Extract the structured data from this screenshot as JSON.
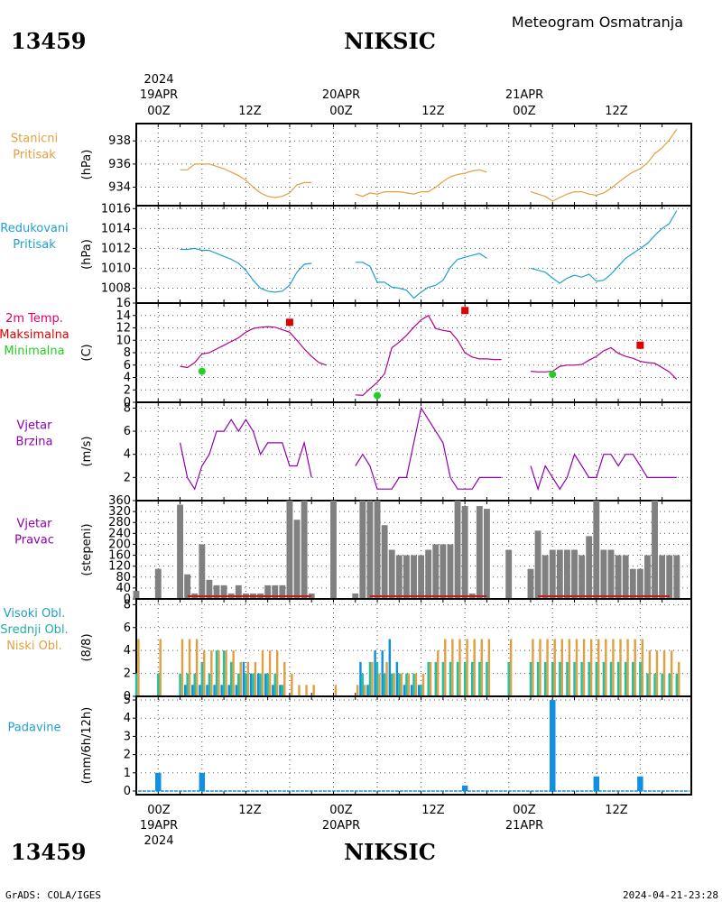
{
  "header": {
    "station_id": "13459",
    "station_name": "NIKSIC",
    "product_title": "Meteogram Osmatranja",
    "footer_left": "GrADS: COLA/IGES",
    "footer_right": "2024-04-21-23:28"
  },
  "time_axis": {
    "top_year": "2024",
    "top_dates": [
      "19APR",
      "20APR",
      "21APR"
    ],
    "hour_labels": [
      "00Z",
      "12Z",
      "00Z",
      "12Z",
      "00Z",
      "12Z"
    ],
    "bottom_dates": [
      "19APR",
      "20APR",
      "21APR"
    ],
    "bottom_year": "2024"
  },
  "colors": {
    "pressure": "#e0a040",
    "reduced": "#20a0d0",
    "temp_line": "#b0008f",
    "tmax": "#e00000",
    "tmin": "#20d020",
    "wind": "#9000b0",
    "dir_bar": "#808080",
    "low_cloud": "#e0a040",
    "mid_cloud": "#20c0a0",
    "high_cloud": "#1090e0",
    "precip": "#1090e0"
  },
  "chart_data": [
    {
      "type": "line",
      "panel": "pressure",
      "title_lines": [
        "Stanicni",
        "Pritisak"
      ],
      "ylabel": "(hPa)",
      "x_unit": "hours since 19APR 00Z",
      "ylim": [
        932.4,
        939.5
      ],
      "yticks": [
        934,
        936,
        938
      ],
      "segments": [
        {
          "x": [
            3,
            4,
            5,
            6,
            7,
            8,
            9,
            10,
            11,
            12,
            13,
            14,
            15,
            16,
            17,
            18,
            19,
            20,
            21
          ],
          "y": [
            935.5,
            935.5,
            936.0,
            936.0,
            936.0,
            935.8,
            935.6,
            935.3,
            935.0,
            934.6,
            934.0,
            933.5,
            933.2,
            933.1,
            933.2,
            933.5,
            934.2,
            934.4,
            934.4
          ]
        },
        {
          "x": [
            27,
            28,
            29,
            30,
            31,
            32,
            33,
            34,
            35,
            36,
            37,
            38,
            39,
            40,
            41,
            42,
            43,
            44,
            45
          ],
          "y": [
            933.4,
            933.2,
            933.5,
            933.4,
            933.6,
            933.6,
            933.6,
            933.5,
            933.4,
            933.6,
            933.6,
            934.0,
            934.5,
            934.9,
            935.1,
            935.2,
            935.4,
            935.5,
            935.3
          ]
        },
        {
          "x": [
            51,
            52,
            53,
            54,
            55,
            56,
            57,
            58,
            59,
            60,
            61,
            62,
            63,
            64,
            65,
            66,
            67,
            68,
            69,
            70,
            71
          ],
          "y": [
            933.6,
            933.4,
            933.2,
            932.8,
            933.1,
            933.4,
            933.6,
            933.6,
            933.4,
            933.3,
            933.5,
            933.9,
            934.4,
            934.9,
            935.3,
            935.6,
            936.1,
            936.9,
            937.4,
            938.1,
            939.0
          ]
        }
      ]
    },
    {
      "type": "line",
      "panel": "reduced_pressure",
      "title_lines": [
        "Redukovani",
        "Pritisak"
      ],
      "ylabel": "(hPa)",
      "x_unit": "hours since 19APR 00Z",
      "ylim": [
        1006.5,
        1016.3
      ],
      "yticks": [
        1008,
        1010,
        1012,
        1014,
        1016
      ],
      "segments": [
        {
          "x": [
            3,
            4,
            5,
            6,
            7,
            8,
            9,
            10,
            11,
            12,
            13,
            14,
            15,
            16,
            17,
            18,
            19,
            20,
            21
          ],
          "y": [
            1011.9,
            1011.9,
            1012.0,
            1011.8,
            1011.8,
            1011.5,
            1011.2,
            1010.9,
            1010.5,
            1009.8,
            1008.8,
            1008.0,
            1007.7,
            1007.6,
            1007.7,
            1008.3,
            1009.6,
            1010.4,
            1010.5
          ]
        },
        {
          "x": [
            27,
            28,
            29,
            30,
            31,
            32,
            33,
            34,
            35,
            36,
            37,
            38,
            39,
            40,
            41,
            42,
            43,
            44,
            45
          ],
          "y": [
            1010.6,
            1010.6,
            1010.2,
            1008.6,
            1008.6,
            1008.1,
            1008.0,
            1007.8,
            1007.0,
            1007.6,
            1008.1,
            1008.3,
            1008.8,
            1010.1,
            1010.9,
            1011.1,
            1011.3,
            1011.5,
            1011.0
          ]
        },
        {
          "x": [
            51,
            52,
            53,
            54,
            55,
            56,
            57,
            58,
            59,
            60,
            61,
            62,
            63,
            64,
            65,
            66,
            67,
            68,
            69,
            70,
            71
          ],
          "y": [
            1010.0,
            1009.8,
            1009.6,
            1009.0,
            1008.5,
            1009.0,
            1009.3,
            1009.1,
            1009.4,
            1008.7,
            1008.8,
            1009.4,
            1010.2,
            1011.0,
            1011.5,
            1012.0,
            1012.5,
            1013.3,
            1014.0,
            1014.5,
            1015.8
          ]
        }
      ]
    },
    {
      "type": "line",
      "panel": "temperature",
      "title_lines": [
        "2m Temp.",
        "Maksimalna",
        "Minimalna"
      ],
      "ylabel": "(C)",
      "x_unit": "hours since 19APR 00Z",
      "ylim": [
        0,
        16
      ],
      "yticks": [
        0,
        2,
        4,
        6,
        8,
        10,
        12,
        14,
        16
      ],
      "segments": [
        {
          "x": [
            3,
            4,
            5,
            6,
            7,
            8,
            9,
            10,
            11,
            12,
            13,
            14,
            15,
            16,
            17,
            18,
            19,
            20,
            21
          ],
          "y": [
            5.8,
            5.6,
            6.4,
            7.8,
            8.0,
            8.6,
            9.2,
            9.8,
            10.4,
            11.3,
            11.9,
            12.1,
            12.2,
            12.1,
            11.7,
            11.3,
            10.0,
            8.6,
            7.4
          ]
        },
        {
          "x": [
            21,
            22,
            23
          ],
          "y": [
            7.4,
            6.4,
            6.0
          ]
        },
        {
          "x": [
            27,
            28,
            29,
            30,
            31,
            32,
            33,
            34,
            35,
            36,
            37,
            38,
            39,
            40,
            41,
            42,
            43,
            44,
            45
          ],
          "y": [
            1.2,
            1.1,
            2.2,
            3.2,
            4.6,
            8.8,
            9.7,
            10.8,
            12.1,
            13.3,
            14.0,
            11.9,
            11.6,
            11.4,
            10.0,
            8.0,
            7.3,
            7.0,
            7.0
          ]
        },
        {
          "x": [
            45,
            46,
            47
          ],
          "y": [
            7.0,
            6.9,
            6.9
          ]
        },
        {
          "x": [
            51,
            52,
            53,
            54,
            55,
            56,
            57,
            58,
            59,
            60,
            61,
            62,
            63,
            64,
            65,
            66,
            67,
            68,
            69,
            70,
            71
          ],
          "y": [
            5.0,
            4.9,
            4.9,
            5.0,
            5.8,
            6.0,
            6.0,
            6.1,
            6.8,
            7.4,
            8.3,
            8.8,
            7.9,
            7.4,
            7.1,
            6.6,
            6.4,
            6.3,
            5.6,
            4.9,
            3.7
          ]
        }
      ],
      "tmax": [
        {
          "x": 18,
          "y": 12.9
        },
        {
          "x": 42,
          "y": 14.8
        },
        {
          "x": 66,
          "y": 9.2
        }
      ],
      "tmin": [
        {
          "x": 6,
          "y": 5.0
        },
        {
          "x": 30,
          "y": 1.1
        },
        {
          "x": 54,
          "y": 4.5
        }
      ]
    },
    {
      "type": "line",
      "panel": "wind_speed",
      "title_lines": [
        "Vjetar",
        "Brzina"
      ],
      "ylabel": "(m/s)",
      "x_unit": "hours since 19APR 00Z",
      "ylim": [
        0,
        8.5
      ],
      "yticks": [
        2,
        4,
        6,
        8
      ],
      "segments": [
        {
          "x": [
            3,
            4,
            5,
            6,
            7,
            8,
            9,
            10,
            11,
            12,
            13,
            14,
            15,
            16,
            17,
            18,
            19,
            20,
            21
          ],
          "y": [
            5,
            2,
            1,
            3,
            4,
            6,
            6,
            7,
            6,
            7,
            6,
            4,
            5,
            5,
            5,
            3,
            3,
            5,
            2
          ]
        },
        {
          "x": [
            27,
            28,
            29,
            30,
            31,
            32,
            33,
            34,
            35,
            36,
            37,
            38,
            39,
            40,
            41,
            42,
            43,
            44,
            45,
            46,
            47
          ],
          "y": [
            3,
            4,
            3,
            1,
            1,
            1,
            2,
            2,
            5,
            8,
            7,
            6,
            5,
            2,
            1,
            1,
            1,
            2,
            2,
            2,
            2
          ]
        },
        {
          "x": [
            51,
            52,
            53,
            54,
            55,
            56,
            57,
            58,
            59,
            60,
            61,
            62,
            63,
            64,
            65,
            66,
            67,
            68,
            69,
            70,
            71
          ],
          "y": [
            3,
            1,
            3,
            2,
            1,
            2,
            4,
            3,
            2,
            2,
            4,
            4,
            3,
            4,
            4,
            3,
            2,
            2,
            2,
            2,
            2
          ]
        }
      ]
    },
    {
      "type": "bar",
      "panel": "wind_direction",
      "title_lines": [
        "Vjetar",
        "Pravac"
      ],
      "ylabel": "(stepeni)",
      "x_unit": "hours since 19APR 00Z",
      "ylim": [
        0,
        360
      ],
      "yticks": [
        0,
        40,
        80,
        120,
        160,
        200,
        240,
        280,
        320,
        360
      ],
      "x": [
        -3,
        0,
        3,
        4,
        5,
        6,
        7,
        8,
        9,
        10,
        11,
        12,
        13,
        14,
        15,
        16,
        17,
        18,
        19,
        20,
        21,
        24,
        27,
        28,
        29,
        30,
        31,
        32,
        33,
        34,
        35,
        36,
        37,
        38,
        39,
        40,
        41,
        42,
        43,
        44,
        45,
        48,
        51,
        52,
        53,
        54,
        55,
        56,
        57,
        58,
        59,
        60,
        61,
        62,
        63,
        64,
        65,
        66,
        67,
        68,
        69,
        70,
        71
      ],
      "values": [
        30,
        110,
        345,
        90,
        20,
        200,
        70,
        50,
        50,
        20,
        50,
        20,
        20,
        20,
        50,
        50,
        50,
        360,
        290,
        360,
        20,
        360,
        20,
        360,
        360,
        360,
        270,
        180,
        160,
        160,
        160,
        160,
        180,
        200,
        200,
        200,
        360,
        340,
        20,
        340,
        330,
        180,
        110,
        250,
        160,
        180,
        180,
        180,
        180,
        160,
        230,
        360,
        180,
        180,
        160,
        160,
        110,
        110,
        160,
        360,
        160,
        160,
        160
      ],
      "calm_bar_color": "#c02020"
    },
    {
      "type": "bar",
      "panel": "clouds",
      "title_lines": [
        "Visoki Obl.",
        "Srednji Obl.",
        "Niski Obl."
      ],
      "ylabel": "(8/8)",
      "x_unit": "hours since 19APR 00Z",
      "ylim": [
        0,
        8.5
      ],
      "yticks": [
        0,
        2,
        4,
        6,
        8
      ],
      "x": [
        -3,
        0,
        3,
        4,
        5,
        6,
        7,
        8,
        9,
        10,
        11,
        12,
        13,
        14,
        15,
        16,
        17,
        18,
        19,
        20,
        21,
        24,
        27,
        28,
        29,
        30,
        31,
        32,
        33,
        34,
        35,
        36,
        37,
        38,
        39,
        40,
        41,
        42,
        43,
        44,
        45,
        48,
        51,
        52,
        53,
        54,
        55,
        56,
        57,
        58,
        59,
        60,
        61,
        62,
        63,
        64,
        65,
        66,
        67,
        68,
        69,
        70,
        71
      ],
      "series": [
        {
          "name": "Niski Obl.",
          "values": [
            5,
            5,
            5,
            5,
            5,
            4,
            4,
            4,
            4,
            4,
            3,
            3,
            3,
            4,
            4,
            4,
            3,
            2,
            1,
            1,
            1,
            1,
            1,
            1,
            3,
            2,
            3,
            2,
            2,
            2,
            2,
            2,
            3,
            4,
            5,
            5,
            5,
            5,
            5,
            5,
            5,
            5,
            5,
            5,
            5,
            5,
            5,
            5,
            5,
            5,
            5,
            5,
            5,
            5,
            5,
            5,
            5,
            5,
            4,
            4,
            4,
            4,
            3
          ]
        },
        {
          "name": "Srednji Obl.",
          "values": [
            2,
            2,
            2,
            2,
            2,
            3,
            2,
            4,
            4,
            3,
            2,
            2,
            2,
            2,
            2,
            2,
            1,
            0,
            0,
            0,
            0,
            0,
            0,
            2,
            3,
            3,
            2,
            2,
            2,
            2,
            2,
            1,
            3,
            3,
            3,
            3,
            3,
            3,
            3,
            3,
            3,
            3,
            3,
            3,
            3,
            3,
            3,
            3,
            3,
            3,
            3,
            3,
            3,
            3,
            3,
            3,
            3,
            3,
            2,
            2,
            2,
            2,
            2
          ]
        },
        {
          "name": "Visoki Obl.",
          "values": [
            0,
            0,
            0,
            1,
            1,
            1,
            1,
            1,
            1,
            1,
            1,
            3,
            2,
            2,
            2,
            1,
            1,
            0,
            0,
            0,
            0,
            0,
            0,
            3,
            1,
            4,
            4,
            5,
            3,
            1,
            1,
            1,
            0,
            0,
            0,
            0,
            0,
            0,
            0,
            0,
            0,
            0,
            0,
            0,
            0,
            0,
            0,
            0,
            0,
            0,
            0,
            0,
            0,
            0,
            0,
            0,
            0,
            0,
            0,
            0,
            0,
            0,
            0
          ]
        }
      ]
    },
    {
      "type": "bar",
      "panel": "precipitation",
      "title_lines": [
        "Padavine"
      ],
      "ylabel": "(mm/6h/12h)",
      "x_unit": "hours since 19APR 00Z",
      "ylim": [
        -0.2,
        5.2
      ],
      "yticks": [
        0,
        1,
        2,
        3,
        4,
        5
      ],
      "x": [
        0,
        6,
        42,
        54,
        60,
        66
      ],
      "values": [
        1.0,
        1.0,
        0.3,
        5.0,
        0.8,
        0.8
      ]
    }
  ]
}
